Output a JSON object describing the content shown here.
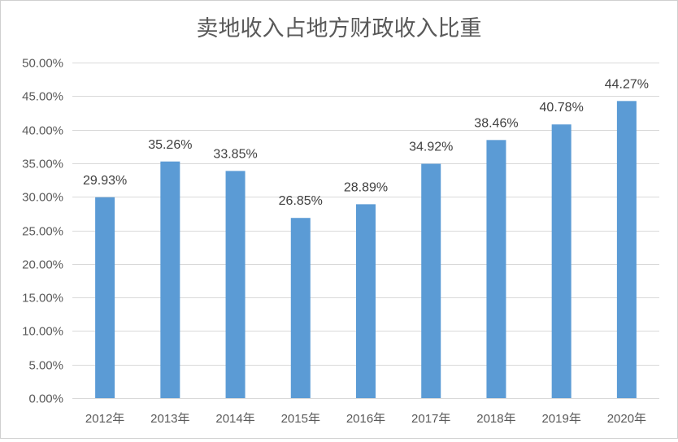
{
  "chart_data": {
    "type": "bar",
    "title": "卖地收入占地方财政收入比重",
    "categories": [
      "2012年",
      "2013年",
      "2014年",
      "2015年",
      "2016年",
      "2017年",
      "2018年",
      "2019年",
      "2020年"
    ],
    "values": [
      29.93,
      35.26,
      33.85,
      26.85,
      28.89,
      34.92,
      38.46,
      40.78,
      44.27
    ],
    "data_labels": [
      "29.93%",
      "35.26%",
      "33.85%",
      "26.85%",
      "28.89%",
      "34.92%",
      "38.46%",
      "40.78%",
      "44.27%"
    ],
    "y_ticks": [
      "0.00%",
      "5.00%",
      "10.00%",
      "15.00%",
      "20.00%",
      "25.00%",
      "30.00%",
      "35.00%",
      "40.00%",
      "45.00%",
      "50.00%"
    ],
    "ylim": [
      0,
      50
    ],
    "xlabel": "",
    "ylabel": "",
    "grid": true,
    "legend": "none",
    "bar_color": "#5b9bd5"
  }
}
